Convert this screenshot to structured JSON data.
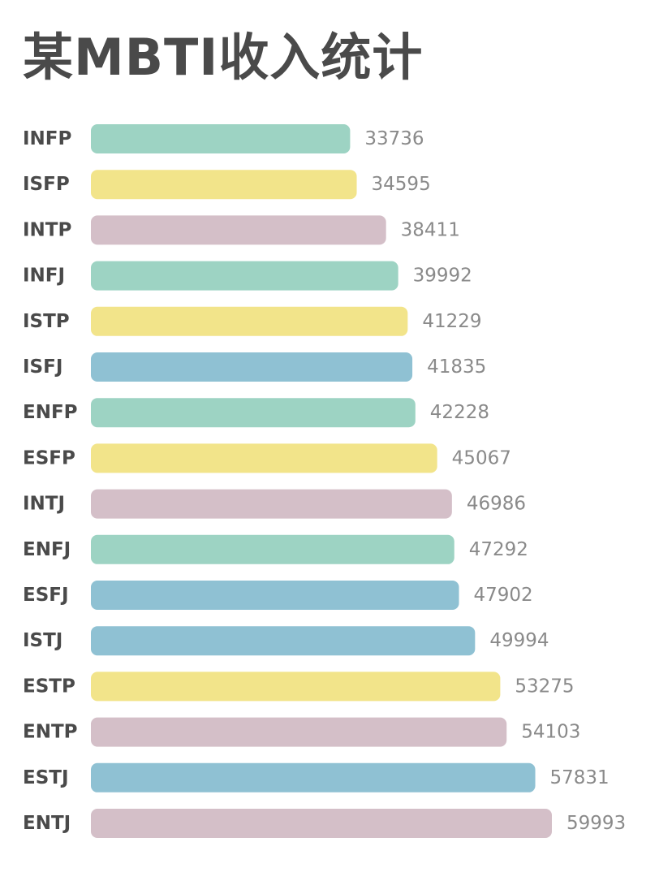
{
  "chart_data": {
    "type": "bar",
    "orientation": "horizontal",
    "title": "某MBTI收入统计",
    "xlabel": "",
    "ylabel": "",
    "grid": false,
    "xlim": [
      0,
      62000
    ],
    "categories": [
      "INFP",
      "ISFP",
      "INTP",
      "INFJ",
      "ISTP",
      "ISFJ",
      "ENFP",
      "ESFP",
      "INTJ",
      "ENFJ",
      "ESFJ",
      "ISTJ",
      "ESTP",
      "ENTP",
      "ESTJ",
      "ENTJ"
    ],
    "values": [
      33736,
      34595,
      38411,
      39992,
      41229,
      41835,
      42228,
      45067,
      46986,
      47292,
      47902,
      49994,
      53275,
      54103,
      57831,
      59993
    ],
    "colors": [
      "#9dd3c3",
      "#f2e48a",
      "#d4bfc8",
      "#9dd3c3",
      "#f2e48a",
      "#8fc1d3",
      "#9dd3c3",
      "#f2e48a",
      "#d4bfc8",
      "#9dd3c3",
      "#8fc1d3",
      "#8fc1d3",
      "#f2e48a",
      "#d4bfc8",
      "#8fc1d3",
      "#d4bfc8"
    ]
  },
  "footer": {
    "text": ""
  }
}
